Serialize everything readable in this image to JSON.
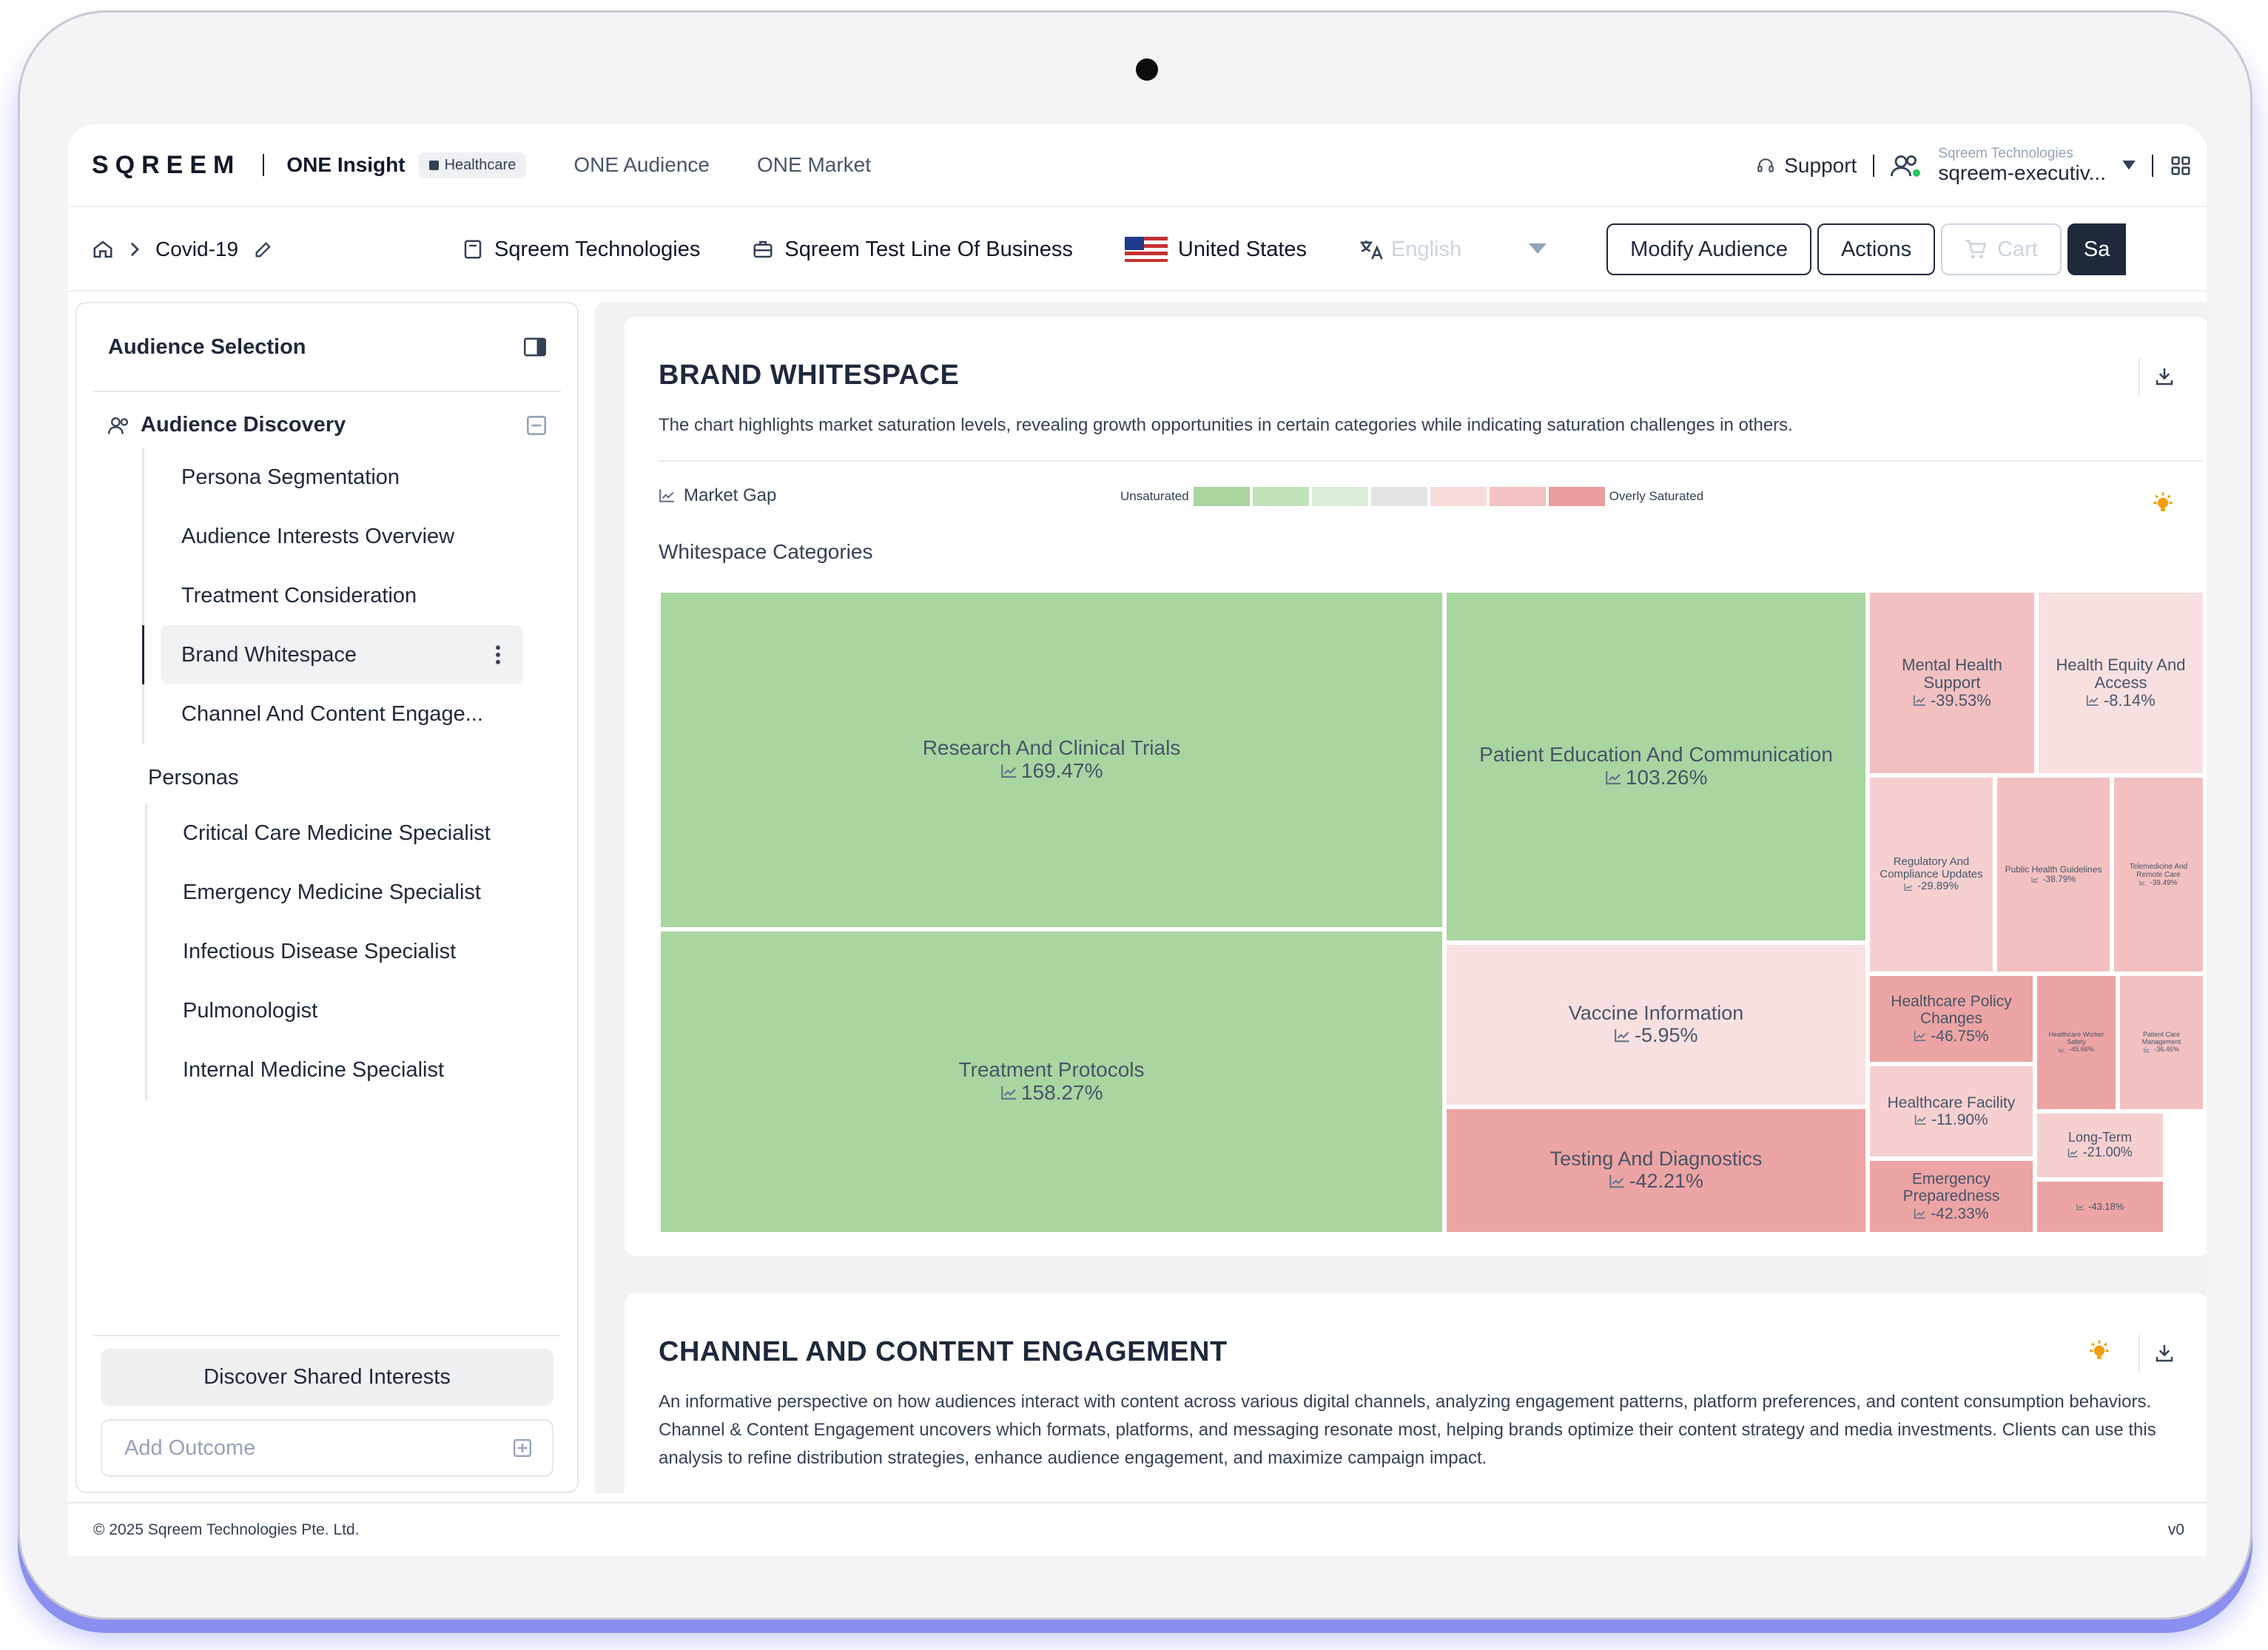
{
  "topnav": {
    "logo": "SQREEM",
    "product": "ONE Insight",
    "badge": "Healthcare",
    "links": [
      "ONE Audience",
      "ONE Market"
    ],
    "support": "Support",
    "account_org": "Sqreem Technologies",
    "account_user": "sqreem-executiv..."
  },
  "subbar": {
    "crumb": "Covid-19",
    "company": "Sqreem Technologies",
    "business_line": "Sqreem Test Line Of Business",
    "country": "United States",
    "language": "English",
    "modify_label": "Modify Audience",
    "actions_label": "Actions",
    "cart_label": "Cart",
    "save_label": "Sa"
  },
  "sidebar": {
    "title": "Audience Selection",
    "section": "Audience Discovery",
    "items": [
      "Persona Segmentation",
      "Audience Interests Overview",
      "Treatment Consideration",
      "Brand Whitespace",
      "Channel And Content Engage..."
    ],
    "personas_title": "Personas",
    "personas": [
      "Critical Care Medicine Specialist",
      "Emergency Medicine Specialist",
      "Infectious Disease Specialist",
      "Pulmonologist",
      "Internal Medicine Specialist"
    ],
    "discover_label": "Discover Shared Interests",
    "outcome_placeholder": "Add Outcome"
  },
  "brand_whitespace": {
    "title": "BRAND WHITESPACE",
    "description": "The chart highlights market saturation levels, revealing growth opportunities in certain categories while indicating saturation challenges in others.",
    "metric": "Market Gap",
    "legend_low": "Unsaturated",
    "legend_high": "Overly Saturated",
    "legend_colors": [
      "#a8d5a0",
      "#c2e2bb",
      "#dbeed7",
      "#e4e4e4",
      "#f8dcdc",
      "#f3c2c2",
      "#ea9d9d"
    ],
    "categories_label": "Whitespace Categories"
  },
  "chart_data": {
    "type": "treemap",
    "metric": "Market Gap",
    "unit": "%",
    "items": [
      {
        "name": "Research And Clinical Trials",
        "value": 169.47,
        "label": "169.47%"
      },
      {
        "name": "Treatment Protocols",
        "value": 158.27,
        "label": "158.27%"
      },
      {
        "name": "Patient Education And Communication",
        "value": 103.26,
        "label": "103.26%"
      },
      {
        "name": "Vaccine Information",
        "value": -5.95,
        "label": "-5.95%"
      },
      {
        "name": "Testing And Diagnostics",
        "value": -42.21,
        "label": "-42.21%"
      },
      {
        "name": "Mental Health Support",
        "value": -39.53,
        "label": "-39.53%"
      },
      {
        "name": "Health Equity And Access",
        "value": -8.14,
        "label": "-8.14%"
      },
      {
        "name": "Regulatory And Compliance Updates",
        "value": -29.89,
        "label": "-29.89%"
      },
      {
        "name": "Public Health Guidelines",
        "value": -38.79,
        "label": "-38.79%"
      },
      {
        "name": "Telemedicine And Remote Care",
        "value": -39.49,
        "label": "-39.49%"
      },
      {
        "name": "Healthcare Policy Changes",
        "value": -46.75,
        "label": "-46.75%"
      },
      {
        "name": "Healthcare Worker Safety",
        "value": -45.66,
        "label": "-45.66%"
      },
      {
        "name": "Patient Care Management",
        "value": -36.46,
        "label": "-36.46%"
      },
      {
        "name": "Healthcare Facility",
        "value": -11.9,
        "label": "-11.90%"
      },
      {
        "name": "Long-Term",
        "value": -21.0,
        "label": "-21.00%"
      },
      {
        "name": "Emergency Preparedness",
        "value": -42.33,
        "label": "-42.33%"
      },
      {
        "name": "",
        "value": -43.18,
        "label": "-43.18%"
      }
    ]
  },
  "channel": {
    "title": "CHANNEL AND CONTENT ENGAGEMENT",
    "description": "An informative perspective on how audiences interact with content across various digital channels, analyzing engagement patterns, platform preferences, and content consumption behaviors. Channel & Content Engagement uncovers which formats, platforms, and messaging resonate most, helping brands optimize their content strategy and media investments. Clients can use this analysis to refine distribution strategies, enhance audience engagement, and maximize campaign impact."
  },
  "footer": {
    "copyright": "© 2025 Sqreem Technologies Pte. Ltd.",
    "version": "v0"
  }
}
